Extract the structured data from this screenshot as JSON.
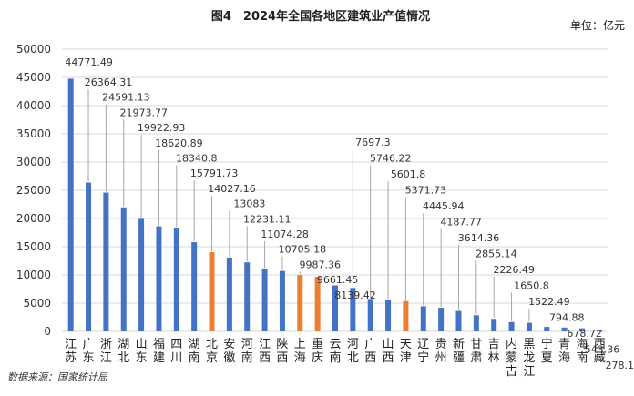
{
  "chart_data": {
    "type": "bar",
    "title": "图4　2024年全国各地区建筑业产值情况",
    "unit_label": "单位：亿元",
    "source": "数据来源：国家统计局",
    "ylim": [
      0,
      50000
    ],
    "yticks": [
      0,
      5000,
      10000,
      15000,
      20000,
      25000,
      30000,
      35000,
      40000,
      45000,
      50000
    ],
    "grid": true,
    "legend": "none",
    "colors": {
      "default": "#4472c4",
      "highlight": "#ed7d31"
    },
    "categories": [
      "江苏",
      "广东",
      "浙江",
      "湖北",
      "山东",
      "福建",
      "四川",
      "湖南",
      "北京",
      "安徽",
      "河南",
      "江西",
      "陕西",
      "上海",
      "重庆",
      "云南",
      "河北",
      "广西",
      "山西",
      "天津",
      "辽宁",
      "贵州",
      "新疆",
      "甘肃",
      "吉林",
      "内蒙古",
      "黑龙江",
      "宁夏",
      "青海",
      "海南",
      "西藏"
    ],
    "values": [
      44771.49,
      26364.31,
      24591.13,
      21973.77,
      19922.93,
      18620.89,
      18340.8,
      15791.73,
      14027.16,
      13083,
      12231.11,
      11074.28,
      10705.18,
      9987.36,
      9661.45,
      8139.42,
      7697.3,
      5746.22,
      5601.8,
      5371.73,
      4445.94,
      4187.77,
      3614.36,
      2855.14,
      2226.49,
      1650.8,
      1522.49,
      794.88,
      678.72,
      543.36,
      278.1
    ],
    "value_labels": [
      "44771.49",
      "26364.31",
      "24591.13",
      "21973.77",
      "19922.93",
      "18620.89",
      "18340.8",
      "15791.73",
      "14027.16",
      "13083",
      "12231.11",
      "11074.28",
      "10705.18",
      "9987.36",
      "9661.45",
      "8139.42",
      "7697.3",
      "5746.22",
      "5601.8",
      "5371.73",
      "4445.94",
      "4187.77",
      "3614.36",
      "2855.14",
      "2226.49",
      "1650.8",
      "1522.49",
      "794.88",
      "678.72",
      "543.36",
      "278.1"
    ],
    "highlighted": [
      "北京",
      "上海",
      "重庆",
      "天津"
    ]
  }
}
